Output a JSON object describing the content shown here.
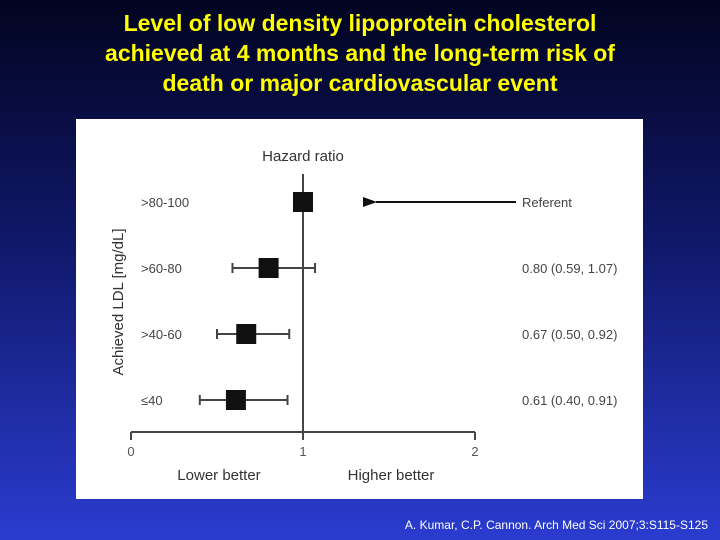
{
  "slide": {
    "title_lines": [
      "Level of low density lipoprotein cholesterol",
      "achieved at 4 months and the long-term risk of",
      "death or major cardiovascular event"
    ],
    "citation": "A. Kumar, C.P. Cannon. Arch Med Sci 2007;3:S115-S125",
    "colors": {
      "title": "#ffff00",
      "marker": "#111111",
      "axis": "#444444"
    }
  },
  "chart_data": {
    "type": "forest",
    "title": "Hazard ratio",
    "ylabel": "Achieved LDL [mg/dL]",
    "xlim": [
      0,
      2
    ],
    "xticks": [
      0,
      1,
      2
    ],
    "reference_line": 1,
    "x_annotations": {
      "left": "Lower better",
      "right": "Higher better"
    },
    "grid": false,
    "rows": [
      {
        "category": ">80-100",
        "hr": 1.0,
        "lo": null,
        "hi": null,
        "label": "Referent",
        "referent": true
      },
      {
        "category": ">60-80",
        "hr": 0.8,
        "lo": 0.59,
        "hi": 1.07,
        "label": "0.80 (0.59, 1.07)"
      },
      {
        "category": ">40-60",
        "hr": 0.67,
        "lo": 0.5,
        "hi": 0.92,
        "label": "0.67 (0.50, 0.92)"
      },
      {
        "category": "≤40",
        "hr": 0.61,
        "lo": 0.4,
        "hi": 0.91,
        "label": "0.61 (0.40, 0.91)"
      }
    ]
  }
}
